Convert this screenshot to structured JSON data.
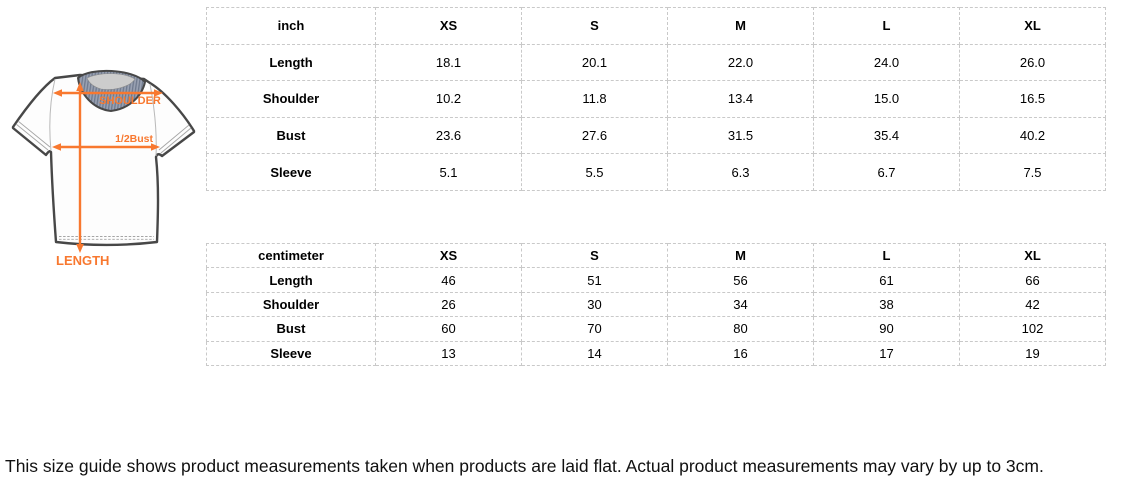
{
  "diagram": {
    "accent_color": "#f8782f",
    "labels": {
      "shoulder": "SHOULDER",
      "half_bust": "1/2Bust",
      "length": "LENGTH"
    }
  },
  "tables": [
    {
      "unit": "inch",
      "columns": [
        "XS",
        "S",
        "M",
        "L",
        "XL"
      ],
      "rows": [
        {
          "label": "Length",
          "values": [
            "18.1",
            "20.1",
            "22.0",
            "24.0",
            "26.0"
          ]
        },
        {
          "label": "Shoulder",
          "values": [
            "10.2",
            "11.8",
            "13.4",
            "15.0",
            "16.5"
          ]
        },
        {
          "label": "Bust",
          "values": [
            "23.6",
            "27.6",
            "31.5",
            "35.4",
            "40.2"
          ]
        },
        {
          "label": "Sleeve",
          "values": [
            "5.1",
            "5.5",
            "6.3",
            "6.7",
            "7.5"
          ]
        }
      ]
    },
    {
      "unit": "centimeter",
      "columns": [
        "XS",
        "S",
        "M",
        "L",
        "XL"
      ],
      "rows": [
        {
          "label": "Length",
          "values": [
            "46",
            "51",
            "56",
            "61",
            "66"
          ]
        },
        {
          "label": "Shoulder",
          "values": [
            "26",
            "30",
            "34",
            "38",
            "42"
          ]
        },
        {
          "label": "Bust",
          "values": [
            "60",
            "70",
            "80",
            "90",
            "102"
          ]
        },
        {
          "label": "Sleeve",
          "values": [
            "13",
            "14",
            "16",
            "17",
            "19"
          ]
        }
      ]
    }
  ],
  "footer": {
    "note": "This size guide shows product measurements taken when products are laid flat. Actual product measurements may vary by up to 3cm."
  }
}
